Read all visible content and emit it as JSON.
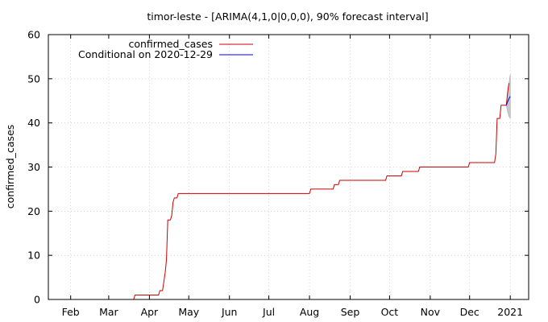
{
  "chart_data": {
    "type": "line",
    "title": "timor-leste -  [ARIMA(4,1,0|0,0,0), 90% forecast interval]",
    "xlabel": "",
    "ylabel": "confirmed_cases",
    "ylim": [
      0,
      60
    ],
    "yticks": [
      0,
      10,
      20,
      30,
      40,
      50,
      60
    ],
    "xlim": [
      "2020-01-15",
      "2021-01-15"
    ],
    "xticks": [
      {
        "date": "2020-02-01",
        "label": "Feb"
      },
      {
        "date": "2020-03-01",
        "label": "Mar"
      },
      {
        "date": "2020-04-01",
        "label": "Apr"
      },
      {
        "date": "2020-05-01",
        "label": "May"
      },
      {
        "date": "2020-06-01",
        "label": "Jun"
      },
      {
        "date": "2020-07-01",
        "label": "Jul"
      },
      {
        "date": "2020-08-01",
        "label": "Aug"
      },
      {
        "date": "2020-09-01",
        "label": "Sep"
      },
      {
        "date": "2020-10-01",
        "label": "Oct"
      },
      {
        "date": "2020-11-01",
        "label": "Nov"
      },
      {
        "date": "2020-12-01",
        "label": "Dec"
      },
      {
        "date": "2021-01-01",
        "label": "2021"
      }
    ],
    "grid": true,
    "legend_position": "top-left",
    "series": [
      {
        "name": "confirmed_cases",
        "color": "#cc0000",
        "points": [
          [
            "2020-01-22",
            0
          ],
          [
            "2020-03-20",
            0
          ],
          [
            "2020-03-21",
            1
          ],
          [
            "2020-04-08",
            1
          ],
          [
            "2020-04-09",
            2
          ],
          [
            "2020-04-11",
            2
          ],
          [
            "2020-04-12",
            4
          ],
          [
            "2020-04-13",
            6
          ],
          [
            "2020-04-14",
            9
          ],
          [
            "2020-04-15",
            18
          ],
          [
            "2020-04-17",
            18
          ],
          [
            "2020-04-18",
            19
          ],
          [
            "2020-04-19",
            22
          ],
          [
            "2020-04-20",
            23
          ],
          [
            "2020-04-22",
            23
          ],
          [
            "2020-04-23",
            24
          ],
          [
            "2020-08-01",
            24
          ],
          [
            "2020-08-02",
            25
          ],
          [
            "2020-08-19",
            25
          ],
          [
            "2020-08-20",
            26
          ],
          [
            "2020-08-23",
            26
          ],
          [
            "2020-08-24",
            27
          ],
          [
            "2020-09-28",
            27
          ],
          [
            "2020-09-29",
            28
          ],
          [
            "2020-10-10",
            28
          ],
          [
            "2020-10-11",
            29
          ],
          [
            "2020-10-23",
            29
          ],
          [
            "2020-10-24",
            30
          ],
          [
            "2020-11-30",
            30
          ],
          [
            "2020-12-01",
            31
          ],
          [
            "2020-12-20",
            31
          ],
          [
            "2020-12-21",
            33
          ],
          [
            "2020-12-22",
            41
          ],
          [
            "2020-12-24",
            41
          ],
          [
            "2020-12-25",
            44
          ],
          [
            "2020-12-29",
            44
          ],
          [
            "2020-12-30",
            47
          ],
          [
            "2020-12-31",
            49
          ]
        ]
      },
      {
        "name": "Conditional on 2020-12-29",
        "color": "#0000ff",
        "points": [
          [
            "2020-12-29",
            44
          ],
          [
            "2020-12-30",
            44.8
          ],
          [
            "2020-12-31",
            45.5
          ],
          [
            "2021-01-01",
            46
          ]
        ]
      }
    ],
    "forecast_interval": {
      "label": "90% forecast interval",
      "color": "#bbbbbb",
      "lower": [
        [
          "2020-12-29",
          44
        ],
        [
          "2020-12-30",
          42.5
        ],
        [
          "2020-12-31",
          41.5
        ],
        [
          "2021-01-01",
          41
        ]
      ],
      "upper": [
        [
          "2020-12-29",
          44
        ],
        [
          "2020-12-30",
          47
        ],
        [
          "2020-12-31",
          49
        ],
        [
          "2021-01-01",
          51
        ]
      ]
    }
  }
}
